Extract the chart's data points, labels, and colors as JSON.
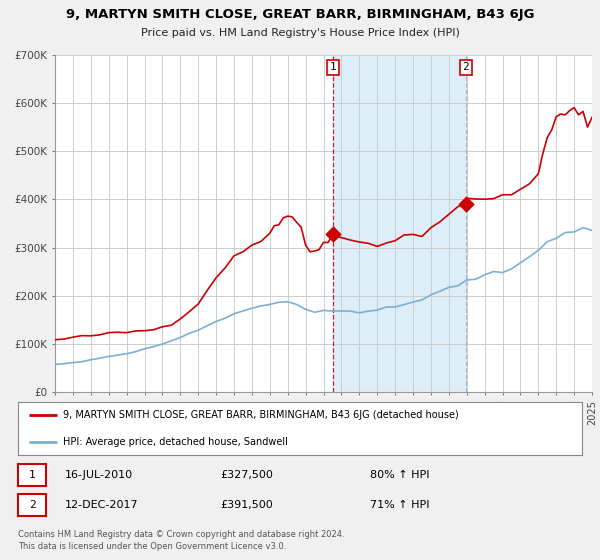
{
  "title": "9, MARTYN SMITH CLOSE, GREAT BARR, BIRMINGHAM, B43 6JG",
  "subtitle": "Price paid vs. HM Land Registry's House Price Index (HPI)",
  "legend_line1": "9, MARTYN SMITH CLOSE, GREAT BARR, BIRMINGHAM, B43 6JG (detached house)",
  "legend_line2": "HPI: Average price, detached house, Sandwell",
  "footnote1": "Contains HM Land Registry data © Crown copyright and database right 2024.",
  "footnote2": "This data is licensed under the Open Government Licence v3.0.",
  "sale1_label": "1",
  "sale1_date": "16-JUL-2010",
  "sale1_price": "£327,500",
  "sale1_hpi": "80% ↑ HPI",
  "sale2_label": "2",
  "sale2_date": "12-DEC-2017",
  "sale2_price": "£391,500",
  "sale2_hpi": "71% ↑ HPI",
  "sale1_year": 2010.54,
  "sale1_value": 327500,
  "sale2_year": 2017.95,
  "sale2_value": 391500,
  "red_color": "#cc0000",
  "blue_color": "#7ab0d4",
  "shading_color": "#deeef8",
  "background_color": "#f0f0f0",
  "plot_bg_color": "#ffffff",
  "grid_color": "#cccccc",
  "xmin": 1995,
  "xmax": 2025,
  "ymin": 0,
  "ymax": 700000,
  "yticks": [
    0,
    100000,
    200000,
    300000,
    400000,
    500000,
    600000,
    700000
  ],
  "ylabels": [
    "£0",
    "£100K",
    "£200K",
    "£300K",
    "£400K",
    "£500K",
    "£600K",
    "£700K"
  ]
}
